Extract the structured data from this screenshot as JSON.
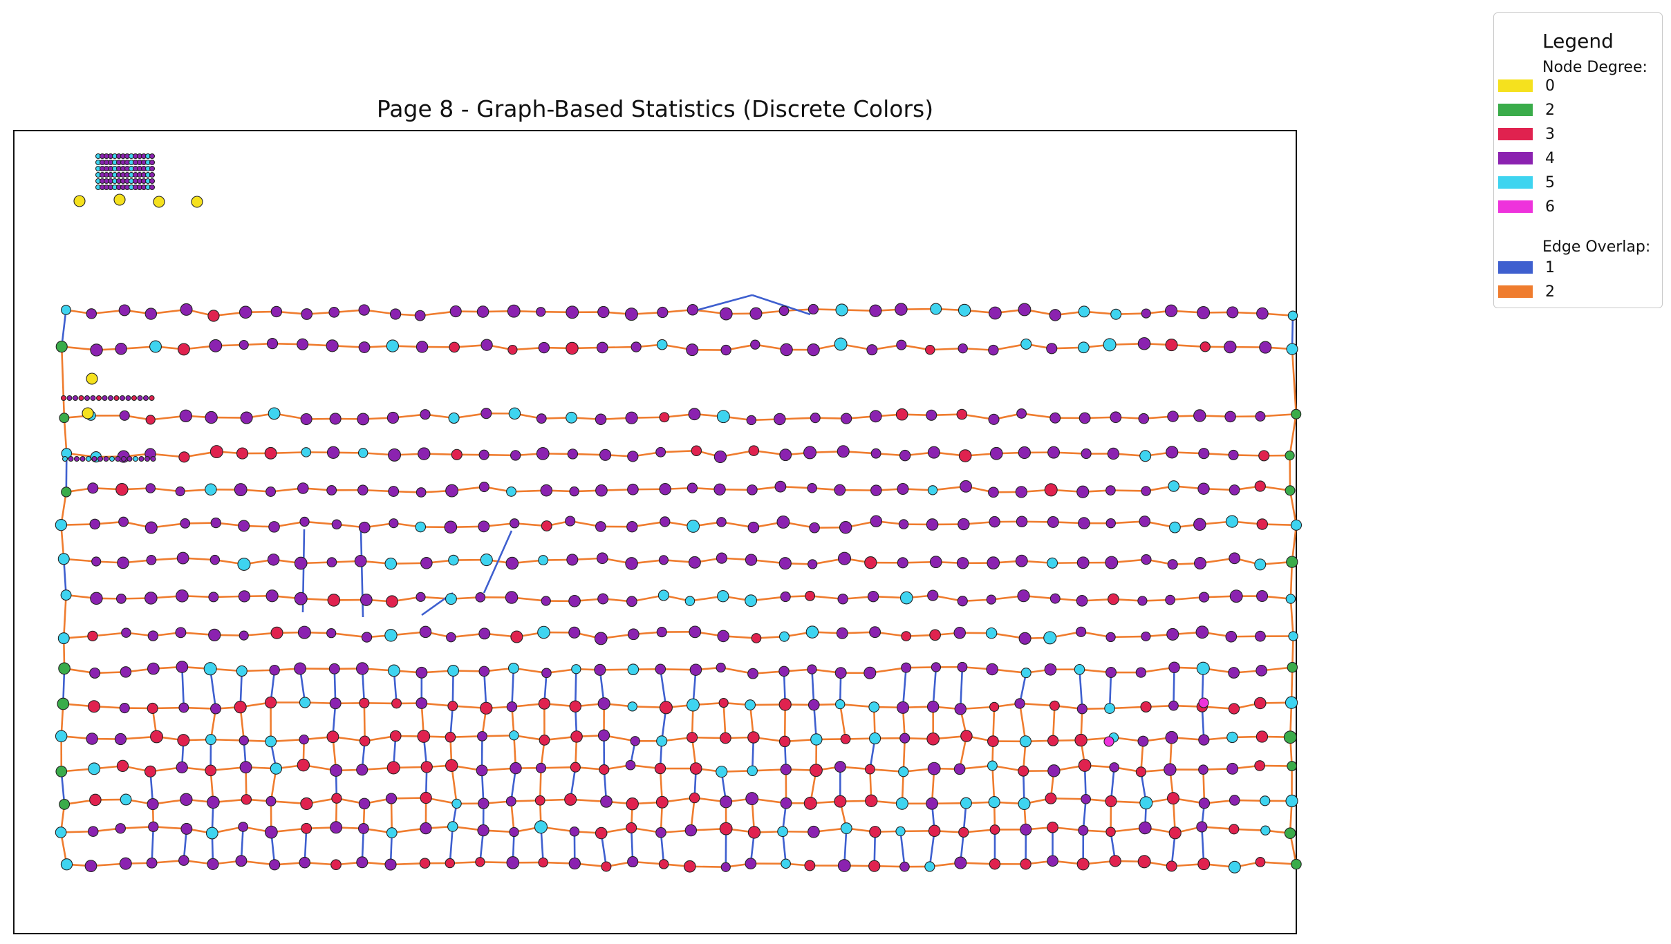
{
  "figure": {
    "title": "Page 8 - Graph-Based Statistics (Discrete Colors)"
  },
  "legend": {
    "title": "Legend",
    "node_section": "Node Degree:",
    "edge_section": "Edge Overlap:",
    "node_items": [
      {
        "label": "0",
        "color": "#f5e11e"
      },
      {
        "label": "2",
        "color": "#3aac4a"
      },
      {
        "label": "3",
        "color": "#e0224f"
      },
      {
        "label": "4",
        "color": "#8b22b0"
      },
      {
        "label": "5",
        "color": "#3ed4f0"
      },
      {
        "label": "6",
        "color": "#ee33dc"
      }
    ],
    "edge_items": [
      {
        "label": "1",
        "color": "#3e5fcf"
      },
      {
        "label": "2",
        "color": "#ef7c2e"
      }
    ]
  }
}
